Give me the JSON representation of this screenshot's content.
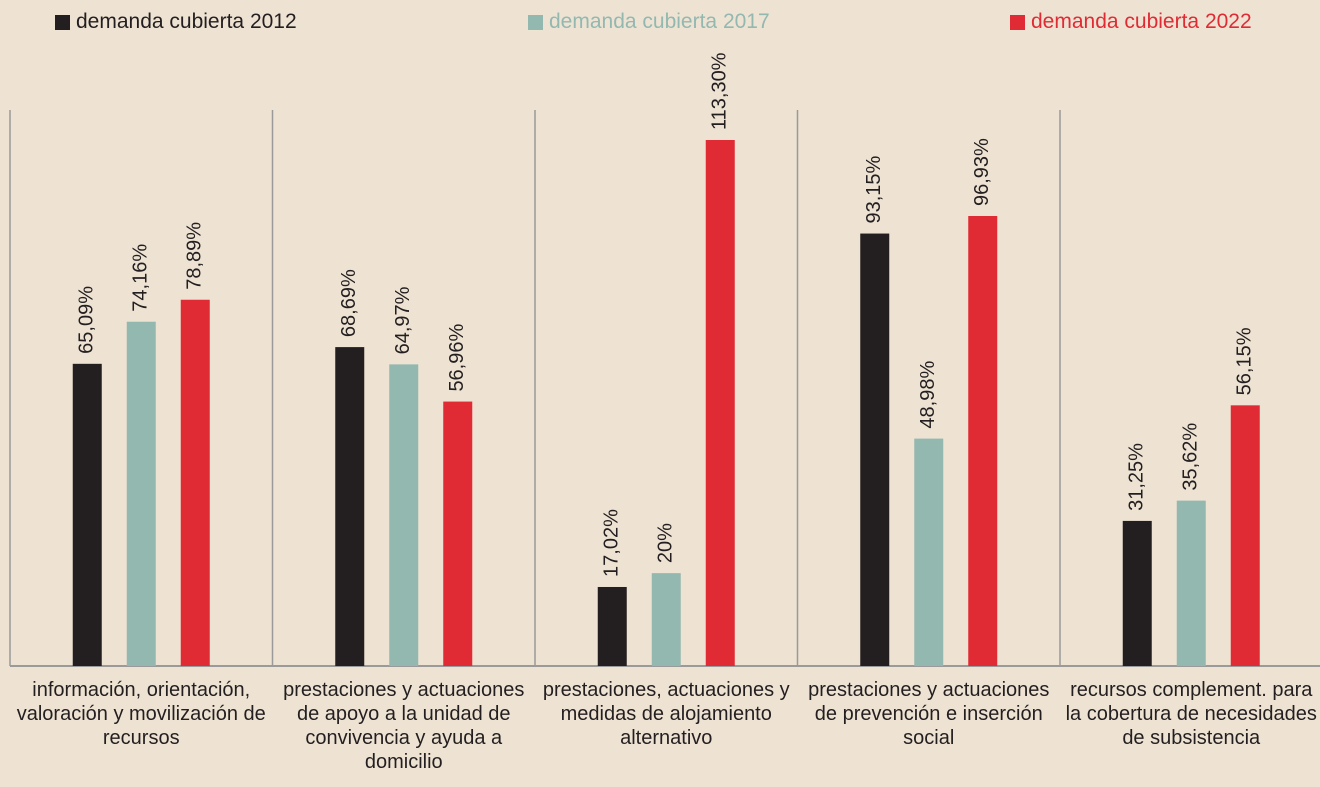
{
  "chart_data": {
    "type": "bar",
    "categories": [
      "información, orientación, valoración y movilización de recursos",
      "prestaciones y actuaciones de apoyo a la unidad de convivencia y ayuda a domicilio",
      "prestaciones, actuaciones y medidas de alojamiento alternativo",
      "prestaciones y actuaciones de prevención e inserción social",
      "recursos complement. para la cobertura de necesidades de subsistencia"
    ],
    "series": [
      {
        "name": "demanda cubierta 2012",
        "color": "#231f20",
        "values": [
          65.09,
          68.69,
          17.02,
          93.15,
          31.25
        ],
        "value_labels": [
          "65,09%",
          "68,69%",
          "17,02%",
          "93,15%",
          "31,25%"
        ]
      },
      {
        "name": "demanda cubierta 2017",
        "color": "#93b8b0",
        "values": [
          74.16,
          64.97,
          20,
          48.98,
          35.62
        ],
        "value_labels": [
          "74,16%",
          "64,97%",
          "20%",
          "48,98%",
          "35,62%"
        ]
      },
      {
        "name": "demanda cubierta 2022",
        "color": "#e02b35",
        "values": [
          78.89,
          56.96,
          113.3,
          96.93,
          56.15
        ],
        "value_labels": [
          "78,89%",
          "56,96%",
          "113,30%",
          "96,93%",
          "56,15%"
        ]
      }
    ]
  }
}
